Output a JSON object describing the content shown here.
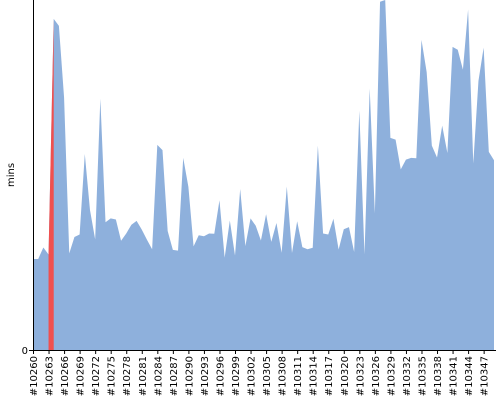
{
  "chart_data": {
    "type": "area",
    "title": "",
    "xlabel": "",
    "ylabel": "mins",
    "ylim": [
      0,
      100
    ],
    "y_ticks": [
      0
    ],
    "grid": false,
    "legend": "none",
    "x_tick_labels": [
      "#10260",
      "#10263",
      "#10266",
      "#10269",
      "#10272",
      "#10275",
      "#10278",
      "#10281",
      "#10284",
      "#10287",
      "#10290",
      "#10293",
      "#10296",
      "#10299",
      "#10302",
      "#10305",
      "#10308",
      "#10311",
      "#10314",
      "#10317",
      "#10320",
      "#10323",
      "#10326",
      "#10329",
      "#10332",
      "#10335",
      "#10338",
      "#10341",
      "#10344",
      "#10347"
    ],
    "colors": {
      "area": "#8eb0dc",
      "highlight": "#f0504f",
      "axis": "#000000"
    },
    "series": [
      {
        "x_start": 10260,
        "values": [
          26,
          26,
          29.3,
          27.3,
          94.6,
          92.6,
          72.1,
          27.6,
          32.3,
          33,
          56,
          40,
          31.6,
          71.8,
          36.5,
          37.6,
          37.3,
          31.2,
          33.3,
          35.8,
          36.9,
          34.4,
          31.5,
          28.8,
          58.6,
          57.1,
          34,
          28.6,
          28.4,
          54.9,
          46.6,
          29.6,
          32.8,
          32.5,
          33.3,
          33.2,
          42.8,
          26.4,
          37,
          27,
          46,
          29.7,
          37.6,
          35.5,
          31.3,
          38.8,
          30.9,
          36.3,
          27.8,
          46.7,
          27.7,
          36.8,
          29.4,
          28.8,
          29.2,
          58.4,
          33.3,
          33,
          37.5,
          28.7,
          34.5,
          35.1,
          28,
          68.4,
          27.3,
          74.7,
          39,
          99.5,
          100,
          60.6,
          60.1,
          51.6,
          54.4,
          54.9,
          54.8,
          88.6,
          79.4,
          58.4,
          55,
          64.1,
          56.3,
          86.6,
          85.8,
          80.1,
          97.3,
          53.3,
          76.9,
          86.4,
          56.6,
          54.2
        ]
      }
    ],
    "highlight": {
      "x": [
        10263,
        10264
      ]
    }
  }
}
